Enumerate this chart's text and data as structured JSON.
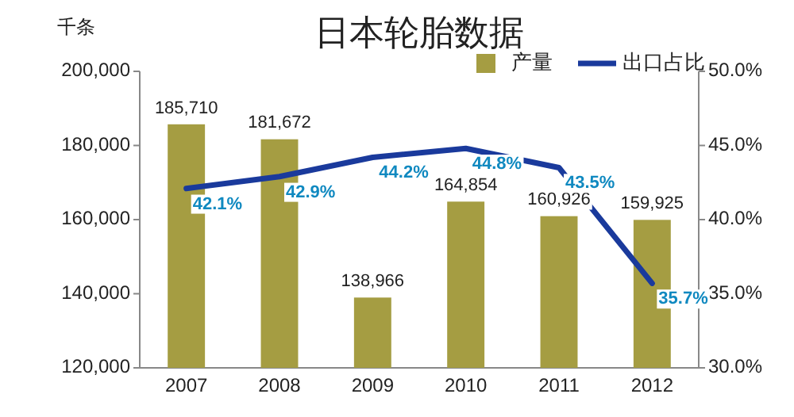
{
  "chart_data": {
    "type": "bar",
    "title": "日本轮胎数据",
    "ylabel": "千条",
    "categories": [
      "2007",
      "2008",
      "2009",
      "2010",
      "2011",
      "2012"
    ],
    "series": [
      {
        "name": "产量",
        "type": "bar",
        "color": "#a59d42",
        "values": [
          185710,
          181672,
          138966,
          164854,
          160926,
          159925
        ],
        "value_labels": [
          "185,710",
          "181,672",
          "138,966",
          "164,854",
          "160,926",
          "159,925"
        ]
      },
      {
        "name": "出口占比",
        "type": "line",
        "axis": "y2",
        "color": "#1a3a9c",
        "values": [
          42.1,
          42.9,
          44.2,
          44.8,
          43.5,
          35.7
        ],
        "value_labels": [
          "42.1%",
          "42.9%",
          "44.2%",
          "44.8%",
          "43.5%",
          "35.7%"
        ]
      }
    ],
    "ylim": [
      120000,
      200000
    ],
    "yticks": [
      {
        "value": 120000,
        "label": "120,000"
      },
      {
        "value": 140000,
        "label": "140,000"
      },
      {
        "value": 160000,
        "label": "160,000"
      },
      {
        "value": 180000,
        "label": "180,000"
      },
      {
        "value": 200000,
        "label": "200,000"
      }
    ],
    "y2lim": [
      30,
      50
    ],
    "y2ticks": [
      {
        "value": 30,
        "label": "30.0%"
      },
      {
        "value": 35,
        "label": "35.0%"
      },
      {
        "value": 40,
        "label": "40.0%"
      },
      {
        "value": 45,
        "label": "45.0%"
      },
      {
        "value": 50,
        "label": "50.0%"
      }
    ],
    "legend": "top right",
    "marker": "none",
    "line_style": "solid"
  }
}
